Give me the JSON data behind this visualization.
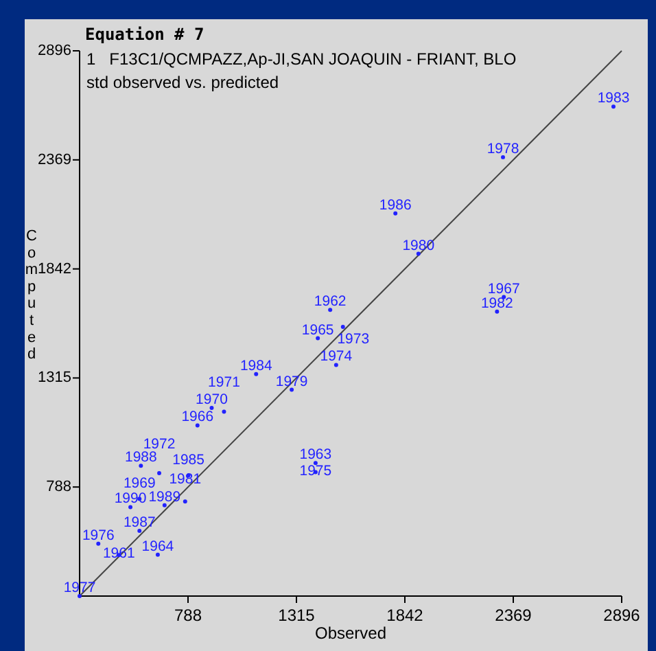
{
  "chart_data": {
    "type": "scatter",
    "title": "Equation # 7",
    "subtitle": "1   F13C1/QCMPAZZ,Ap-JI,SAN JOAQUIN - FRIANT, BLO",
    "xlabel": "Observed",
    "ylabel": "Computed",
    "xlim": [
      261,
      2896
    ],
    "ylim": [
      261,
      2896
    ],
    "xticks": [
      788,
      1315,
      1842,
      2369,
      2896
    ],
    "yticks": [
      788,
      1315,
      1842,
      2369,
      2896
    ],
    "grid": false,
    "series": [
      {
        "type": "scatter",
        "color": "#2222ff",
        "marker": "circle",
        "x": [
          261,
          352,
          452,
          641,
          552,
          508,
          552,
          674,
          774,
          559,
          648,
          790,
          834,
          903,
          963,
          1119,
          1292,
          1508,
          1408,
          1408,
          1419,
          1479,
          1541,
          1796,
          1908,
          2323,
          2290,
          2856,
          2319
        ],
        "values": [
          261,
          514,
          459,
          461,
          576,
          691,
          731,
          700,
          718,
          891,
          855,
          844,
          1086,
          1170,
          1152,
          1334,
          1258,
          1378,
          904,
          860,
          1507,
          1644,
          1562,
          2110,
          1915,
          1706,
          1636,
          2626,
          2382
        ]
      },
      {
        "type": "line",
        "color": "#444444",
        "line_style": "solid",
        "x": [
          261,
          2896
        ],
        "values": [
          261,
          2896
        ]
      }
    ],
    "annotations": [
      "std observed vs. predicted",
      {
        "text": "1977",
        "x": 261,
        "y": 261
      },
      {
        "text": "1976",
        "x": 352,
        "y": 514
      },
      {
        "text": "1961",
        "x": 452,
        "y": 459
      },
      {
        "text": "1964",
        "x": 641,
        "y": 461
      },
      {
        "text": "1987",
        "x": 552,
        "y": 576
      },
      {
        "text": "1990",
        "x": 508,
        "y": 691
      },
      {
        "text": "1969",
        "x": 552,
        "y": 731
      },
      {
        "text": "1989",
        "x": 674,
        "y": 700
      },
      {
        "text": "1981",
        "x": 774,
        "y": 718
      },
      {
        "text": "1988",
        "x": 559,
        "y": 891
      },
      {
        "text": "1972",
        "x": 648,
        "y": 855
      },
      {
        "text": "1985",
        "x": 790,
        "y": 844
      },
      {
        "text": "1966",
        "x": 834,
        "y": 1086
      },
      {
        "text": "1970",
        "x": 903,
        "y": 1170
      },
      {
        "text": "1971",
        "x": 963,
        "y": 1152
      },
      {
        "text": "1984",
        "x": 1119,
        "y": 1334
      },
      {
        "text": "1979",
        "x": 1292,
        "y": 1258
      },
      {
        "text": "1974",
        "x": 1508,
        "y": 1378
      },
      {
        "text": "1963",
        "x": 1408,
        "y": 904
      },
      {
        "text": "1975",
        "x": 1408,
        "y": 860
      },
      {
        "text": "1965",
        "x": 1419,
        "y": 1507
      },
      {
        "text": "1962",
        "x": 1479,
        "y": 1644
      },
      {
        "text": "1973",
        "x": 1541,
        "y": 1562
      },
      {
        "text": "1986",
        "x": 1796,
        "y": 2110
      },
      {
        "text": "1980",
        "x": 1908,
        "y": 1915
      },
      {
        "text": "1967",
        "x": 2323,
        "y": 1706
      },
      {
        "text": "1982",
        "x": 2290,
        "y": 1636
      },
      {
        "text": "1983",
        "x": 2856,
        "y": 2626
      },
      {
        "text": "1978",
        "x": 2319,
        "y": 2382
      }
    ]
  }
}
